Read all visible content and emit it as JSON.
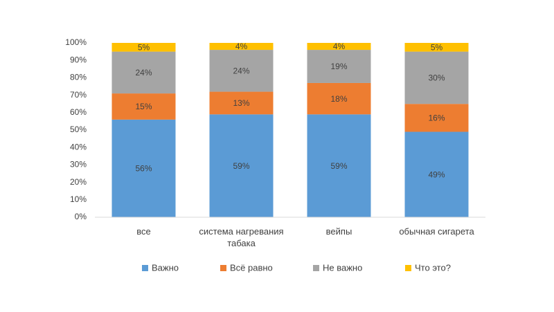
{
  "chart_data": {
    "type": "stacked_bar",
    "categories": [
      "все",
      "система нагревания табака",
      "вейпы",
      "обычная сигарета"
    ],
    "series": [
      {
        "name": "Важно",
        "color": "#5b9bd5",
        "values": [
          56,
          59,
          59,
          49
        ],
        "value_labels": [
          "56%",
          "59%",
          "59%",
          "49%"
        ]
      },
      {
        "name": "Всё равно",
        "color": "#ed7d31",
        "values": [
          15,
          13,
          18,
          16
        ],
        "value_labels": [
          "15%",
          "13%",
          "18%",
          "16%"
        ]
      },
      {
        "name": "Не важно",
        "color": "#a5a5a5",
        "values": [
          24,
          24,
          19,
          30
        ],
        "value_labels": [
          "24%",
          "24%",
          "19%",
          "30%"
        ]
      },
      {
        "name": "Что это?",
        "color": "#ffc000",
        "values": [
          5,
          4,
          4,
          5
        ],
        "value_labels": [
          "5%",
          "4%",
          "4%",
          "5%"
        ]
      }
    ],
    "ylim": [
      0,
      100
    ],
    "yticks": [
      {
        "value": 0,
        "label": "0%"
      },
      {
        "value": 10,
        "label": "10%"
      },
      {
        "value": 20,
        "label": "20%"
      },
      {
        "value": 30,
        "label": "30%"
      },
      {
        "value": 40,
        "label": "40%"
      },
      {
        "value": 50,
        "label": "50%"
      },
      {
        "value": 60,
        "label": "60%"
      },
      {
        "value": 70,
        "label": "70%"
      },
      {
        "value": 80,
        "label": "80%"
      },
      {
        "value": 90,
        "label": "90%"
      },
      {
        "value": 100,
        "label": "100%"
      }
    ],
    "grid": false,
    "legend": "bottom"
  }
}
